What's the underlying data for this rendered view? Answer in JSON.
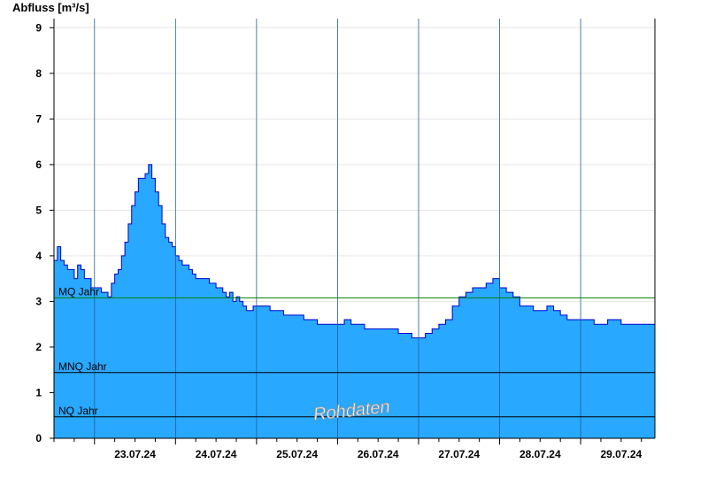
{
  "chart_data": {
    "type": "area",
    "ylabel": "Abfluss [m³/s]",
    "ylim": [
      0,
      9.2
    ],
    "yticks": [
      0,
      1,
      2,
      3,
      4,
      5,
      6,
      7,
      8,
      9
    ],
    "xlim": [
      "2024-07-22T12:00",
      "2024-07-29T22:00"
    ],
    "day_boundaries": [
      "2024-07-23T00:00",
      "2024-07-24T00:00",
      "2024-07-25T00:00",
      "2024-07-26T00:00",
      "2024-07-27T00:00",
      "2024-07-28T00:00",
      "2024-07-29T00:00"
    ],
    "day_labels": [
      "23.07.24",
      "24.07.24",
      "25.07.24",
      "26.07.24",
      "27.07.24",
      "28.07.24",
      "29.07.24"
    ],
    "grid": true,
    "fill_color": "#29a8ff",
    "line_color": "#0000cc",
    "reference_lines": [
      {
        "label": "MQ Jahr",
        "value": 3.08,
        "color": "#008000"
      },
      {
        "label": "MNQ Jahr",
        "value": 1.44,
        "color": "#000000"
      },
      {
        "label": "NQ Jahr",
        "value": 0.47,
        "color": "#000000"
      }
    ],
    "watermark": "Rohdaten",
    "series": [
      {
        "x": [
          "2024-07-22T12:00",
          "2024-07-22T13:00",
          "2024-07-22T14:00",
          "2024-07-22T15:00",
          "2024-07-22T16:00",
          "2024-07-22T17:00",
          "2024-07-22T18:00",
          "2024-07-22T19:00",
          "2024-07-22T20:00",
          "2024-07-22T21:00",
          "2024-07-22T22:00",
          "2024-07-22T23:00",
          "2024-07-23T00:00",
          "2024-07-23T01:00",
          "2024-07-23T02:00",
          "2024-07-23T03:00",
          "2024-07-23T04:00",
          "2024-07-23T05:00",
          "2024-07-23T06:00",
          "2024-07-23T07:00",
          "2024-07-23T08:00",
          "2024-07-23T09:00",
          "2024-07-23T10:00",
          "2024-07-23T11:00",
          "2024-07-23T12:00",
          "2024-07-23T13:00",
          "2024-07-23T14:00",
          "2024-07-23T15:00",
          "2024-07-23T16:00",
          "2024-07-23T17:00",
          "2024-07-23T18:00",
          "2024-07-23T19:00",
          "2024-07-23T20:00",
          "2024-07-23T21:00",
          "2024-07-23T22:00",
          "2024-07-23T23:00",
          "2024-07-24T00:00",
          "2024-07-24T01:00",
          "2024-07-24T02:00",
          "2024-07-24T03:00",
          "2024-07-24T04:00",
          "2024-07-24T05:00",
          "2024-07-24T06:00",
          "2024-07-24T07:00",
          "2024-07-24T08:00",
          "2024-07-24T09:00",
          "2024-07-24T10:00",
          "2024-07-24T11:00",
          "2024-07-24T12:00",
          "2024-07-24T13:00",
          "2024-07-24T14:00",
          "2024-07-24T15:00",
          "2024-07-24T16:00",
          "2024-07-24T17:00",
          "2024-07-24T18:00",
          "2024-07-24T19:00",
          "2024-07-24T20:00",
          "2024-07-24T21:00",
          "2024-07-24T22:00",
          "2024-07-24T23:00",
          "2024-07-25T00:00",
          "2024-07-25T02:00",
          "2024-07-25T04:00",
          "2024-07-25T06:00",
          "2024-07-25T08:00",
          "2024-07-25T10:00",
          "2024-07-25T12:00",
          "2024-07-25T14:00",
          "2024-07-25T16:00",
          "2024-07-25T18:00",
          "2024-07-25T20:00",
          "2024-07-25T22:00",
          "2024-07-26T00:00",
          "2024-07-26T02:00",
          "2024-07-26T04:00",
          "2024-07-26T06:00",
          "2024-07-26T08:00",
          "2024-07-26T10:00",
          "2024-07-26T12:00",
          "2024-07-26T14:00",
          "2024-07-26T16:00",
          "2024-07-26T18:00",
          "2024-07-26T20:00",
          "2024-07-26T22:00",
          "2024-07-27T00:00",
          "2024-07-27T02:00",
          "2024-07-27T04:00",
          "2024-07-27T06:00",
          "2024-07-27T08:00",
          "2024-07-27T10:00",
          "2024-07-27T12:00",
          "2024-07-27T14:00",
          "2024-07-27T16:00",
          "2024-07-27T18:00",
          "2024-07-27T20:00",
          "2024-07-27T22:00",
          "2024-07-28T00:00",
          "2024-07-28T02:00",
          "2024-07-28T04:00",
          "2024-07-28T06:00",
          "2024-07-28T08:00",
          "2024-07-28T10:00",
          "2024-07-28T12:00",
          "2024-07-28T14:00",
          "2024-07-28T16:00",
          "2024-07-28T18:00",
          "2024-07-28T20:00",
          "2024-07-28T22:00",
          "2024-07-29T00:00",
          "2024-07-29T02:00",
          "2024-07-29T04:00",
          "2024-07-29T06:00",
          "2024-07-29T08:00",
          "2024-07-29T10:00",
          "2024-07-29T12:00",
          "2024-07-29T14:00",
          "2024-07-29T16:00",
          "2024-07-29T18:00",
          "2024-07-29T20:00",
          "2024-07-29T22:00"
        ],
        "y": [
          3.9,
          4.2,
          3.9,
          3.8,
          3.7,
          3.7,
          3.5,
          3.8,
          3.7,
          3.5,
          3.5,
          3.3,
          3.3,
          3.3,
          3.2,
          3.2,
          3.1,
          3.4,
          3.6,
          3.7,
          4.0,
          4.3,
          4.7,
          5.1,
          5.4,
          5.7,
          5.7,
          5.8,
          6.0,
          5.7,
          5.4,
          5.1,
          4.7,
          4.4,
          4.3,
          4.2,
          4.0,
          3.9,
          3.8,
          3.8,
          3.7,
          3.6,
          3.5,
          3.5,
          3.5,
          3.5,
          3.4,
          3.4,
          3.3,
          3.3,
          3.2,
          3.1,
          3.2,
          3.0,
          3.1,
          3.0,
          2.9,
          2.8,
          2.8,
          2.9,
          2.9,
          2.9,
          2.8,
          2.8,
          2.7,
          2.7,
          2.7,
          2.6,
          2.6,
          2.5,
          2.5,
          2.5,
          2.5,
          2.6,
          2.5,
          2.5,
          2.4,
          2.4,
          2.4,
          2.4,
          2.4,
          2.3,
          2.3,
          2.2,
          2.2,
          2.3,
          2.4,
          2.5,
          2.6,
          2.9,
          3.1,
          3.2,
          3.3,
          3.3,
          3.4,
          3.5,
          3.3,
          3.2,
          3.1,
          2.9,
          2.9,
          2.8,
          2.8,
          2.9,
          2.8,
          2.7,
          2.6,
          2.6,
          2.6,
          2.6,
          2.5,
          2.5,
          2.6,
          2.6,
          2.5,
          2.5,
          2.5,
          2.5,
          2.5,
          2.4
        ]
      }
    ]
  }
}
